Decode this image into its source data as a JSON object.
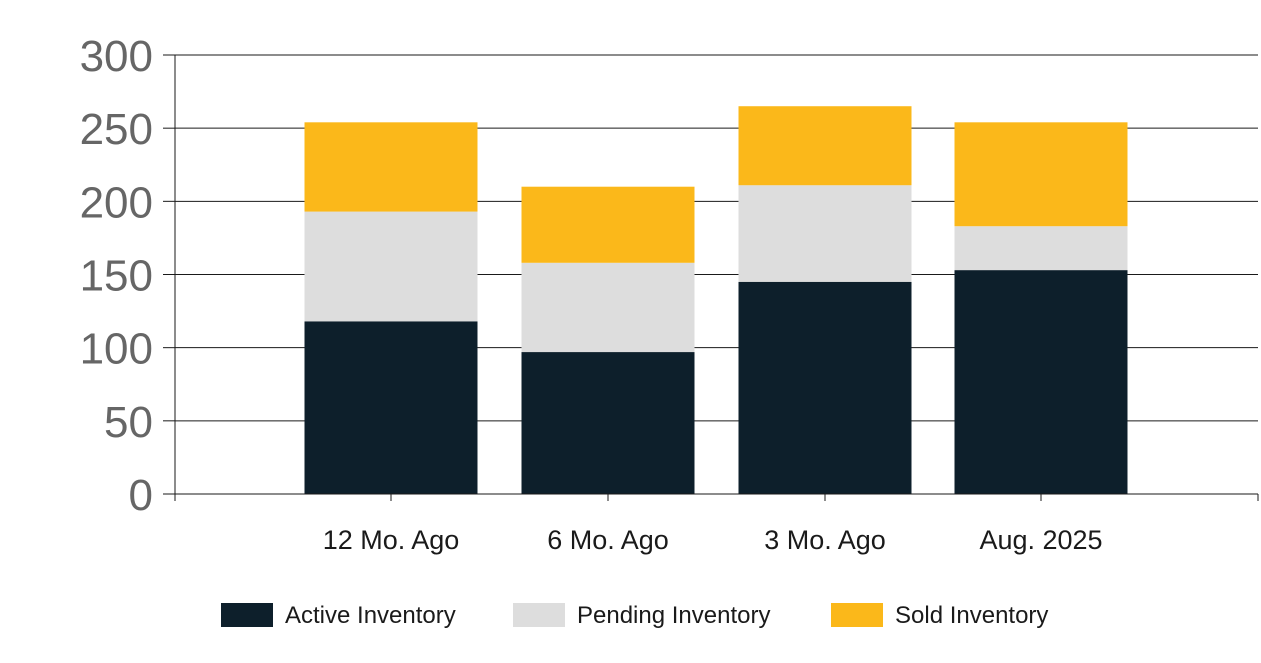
{
  "chart_data": {
    "type": "bar",
    "stacked": true,
    "categories": [
      "12 Mo. Ago",
      "6 Mo. Ago",
      "3 Mo. Ago",
      "Aug. 2025"
    ],
    "series": [
      {
        "name": "Active Inventory",
        "values": [
          118,
          97,
          145,
          153
        ],
        "color": "#0d1f2b"
      },
      {
        "name": "Pending Inventory",
        "values": [
          75,
          61,
          66,
          30
        ],
        "color": "#dddddd"
      },
      {
        "name": "Sold Inventory",
        "values": [
          61,
          52,
          54,
          71
        ],
        "color": "#fbb81a"
      }
    ],
    "title": "",
    "xlabel": "",
    "ylabel": "",
    "ylim": [
      0,
      300
    ],
    "yticks": [
      "0",
      "50",
      "100",
      "150",
      "200",
      "250",
      "300"
    ],
    "grid": true,
    "legend_position": "bottom"
  }
}
